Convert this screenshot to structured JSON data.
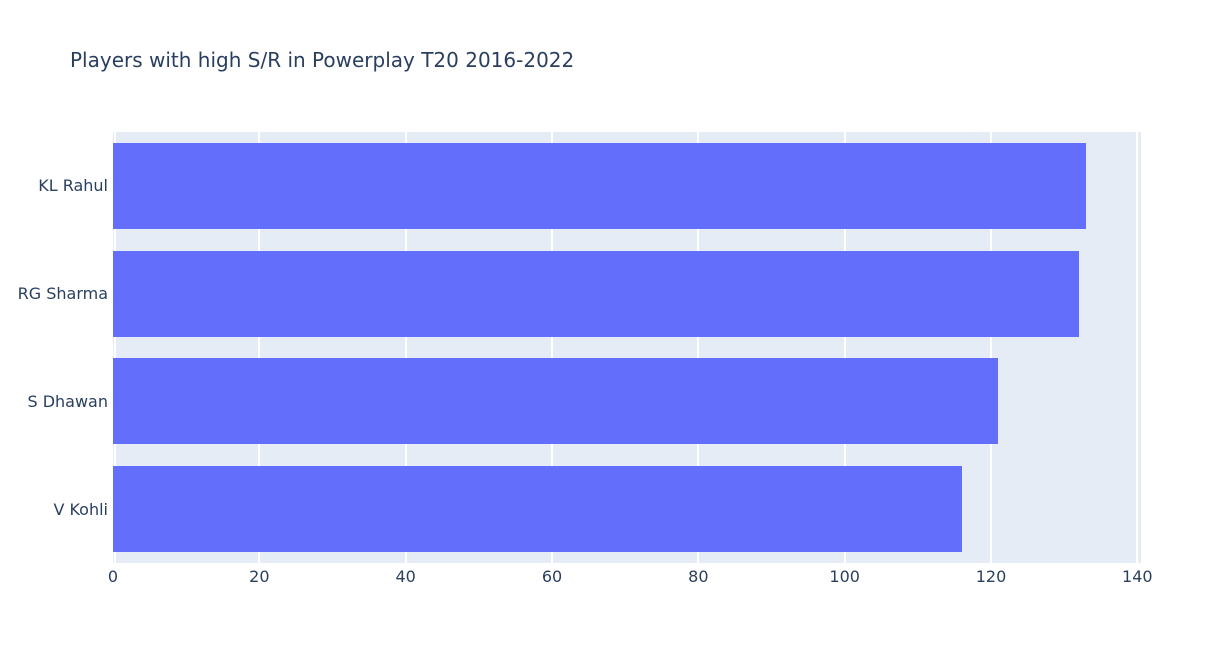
{
  "chart_data": {
    "type": "bar",
    "orientation": "horizontal",
    "title": "Players with high S/R in Powerplay T20 2016-2022",
    "categories": [
      "KL Rahul",
      "RG Sharma",
      "S Dhawan",
      "V Kohli"
    ],
    "values": [
      133,
      132,
      121,
      116
    ],
    "xlabel": "",
    "ylabel": "",
    "xlim": [
      0,
      140.5
    ],
    "xticks": [
      0,
      20,
      40,
      60,
      80,
      100,
      120,
      140
    ],
    "grid": true,
    "legend_visible": false,
    "bar_band_fraction": 0.8,
    "colors": {
      "bar": "#636efa",
      "plot_background": "#e5ecf6",
      "gridline": "#ffffff",
      "text": "#2a3f5f",
      "page_background": "#ffffff"
    }
  }
}
